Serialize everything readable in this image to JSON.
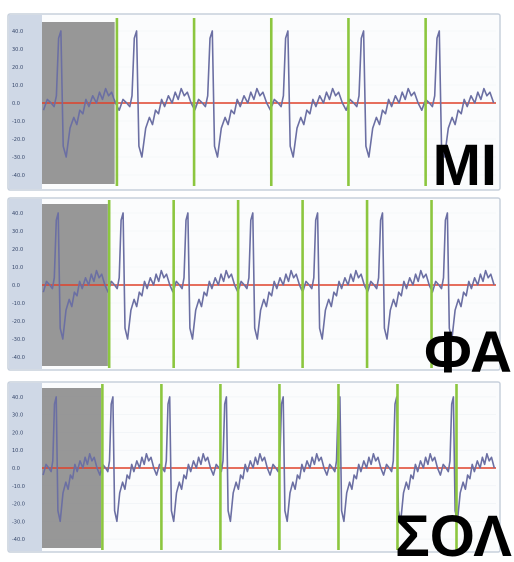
{
  "theme": {
    "panel_background": "#fbfcfd",
    "panel_border": "#c7d0dc",
    "axis_strip": "#cfd8e6",
    "shaded_region": "#8e8e8e",
    "waveform": "#6b6fa3",
    "baseline": "#e0402a",
    "marker": "#8cc63f"
  },
  "chart_data": [
    {
      "type": "line",
      "label": "MI",
      "y_ticks": [
        "40.0",
        "30.0",
        "20.0",
        "10.0",
        "0.0",
        "-10.0",
        "-20.0",
        "-30.0",
        "-40.0"
      ],
      "ylim": [
        -45,
        45
      ],
      "baseline": 0,
      "shaded_fraction": 0.16,
      "marker_fractions": [
        0.165,
        0.335,
        0.505,
        0.675,
        0.845
      ],
      "beat_count": 6,
      "grid": true
    },
    {
      "type": "line",
      "label": "ΦΑ",
      "y_ticks": [
        "40.0",
        "30.0",
        "20.0",
        "10.0",
        "0.0",
        "-10.0",
        "-20.0",
        "-30.0",
        "-40.0"
      ],
      "ylim": [
        -45,
        45
      ],
      "baseline": 0,
      "shaded_fraction": 0.145,
      "marker_fractions": [
        0.148,
        0.29,
        0.432,
        0.574,
        0.716,
        0.858
      ],
      "beat_count": 7,
      "grid": true
    },
    {
      "type": "line",
      "label": "ΣΟΛ",
      "y_ticks": [
        "40.0",
        "30.0",
        "20.0",
        "10.0",
        "0.0",
        "-10.0",
        "-20.0",
        "-30.0",
        "-40.0"
      ],
      "ylim": [
        -45,
        45
      ],
      "baseline": 0,
      "shaded_fraction": 0.13,
      "marker_fractions": [
        0.133,
        0.263,
        0.393,
        0.523,
        0.653,
        0.783,
        0.913
      ],
      "beat_count": 8,
      "grid": true
    }
  ]
}
